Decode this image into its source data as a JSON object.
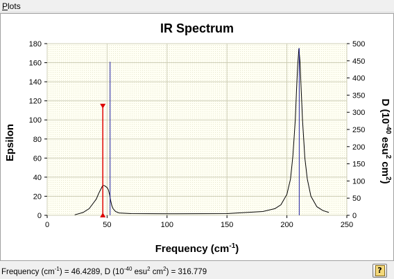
{
  "menu": {
    "plots_mnemonic": "P",
    "plots_rest": "lots"
  },
  "status": {
    "freq_label": "Frequency (cm",
    "freq_exp": "-1",
    "freq_mid": ") = 46.4289, D (10",
    "d_exp": "-40",
    "d_unit_a": " esu",
    "d_exp2": "2",
    "d_unit_b": " cm",
    "d_exp3": "2",
    "d_value": ") = 316.779"
  },
  "help": {
    "glyph": "?"
  },
  "chart_data": {
    "type": "line",
    "title": "IR Spectrum",
    "xlabel": {
      "text": "Frequency (cm",
      "sup": "-1",
      "tail": ")"
    },
    "ylabel_left": "Epsilon",
    "ylabel_right": {
      "p1": "D (10",
      "s1": "-40",
      "p2": " esu",
      "s2": "2",
      "p3": " cm",
      "s3": "2",
      "p4": ")"
    },
    "xlim": [
      0,
      250
    ],
    "ylim_left": [
      0,
      180
    ],
    "ylim_right": [
      0,
      500
    ],
    "x_ticks": [
      "0",
      "50",
      "100",
      "150",
      "200",
      "250"
    ],
    "y_left_ticks": [
      "0",
      "20",
      "40",
      "60",
      "80",
      "100",
      "120",
      "140",
      "160",
      "180"
    ],
    "y_right_ticks": [
      "0",
      "50",
      "100",
      "150",
      "200",
      "250",
      "300",
      "350",
      "400",
      "450",
      "500"
    ],
    "grid": true,
    "spectrum": {
      "x": [
        23,
        30,
        35,
        38,
        41,
        43,
        45,
        46.4,
        48,
        49,
        50,
        51,
        52,
        53,
        54,
        55,
        57,
        60,
        70,
        100,
        150,
        180,
        190,
        195,
        200,
        203,
        205,
        207,
        208,
        209,
        210,
        211,
        212,
        213,
        215,
        217,
        220,
        225,
        230,
        235
      ],
      "y": [
        0.5,
        3,
        7,
        12,
        17,
        23,
        28,
        31.5,
        31,
        30,
        29,
        27,
        22,
        15,
        10,
        7,
        4,
        2.5,
        1.8,
        1.6,
        1.8,
        4,
        7,
        11,
        22,
        38,
        62,
        100,
        130,
        158,
        175,
        160,
        130,
        100,
        60,
        38,
        20,
        9,
        5,
        3
      ]
    },
    "sticks": [
      {
        "x": 46.4289,
        "d": 316.779,
        "color": "#dd0000",
        "selected": true
      },
      {
        "x": 52.5,
        "d": 447,
        "color": "#1f1fa0",
        "selected": false
      },
      {
        "x": 210.3,
        "d": 487,
        "color": "#1f1fa0",
        "selected": false
      }
    ]
  }
}
